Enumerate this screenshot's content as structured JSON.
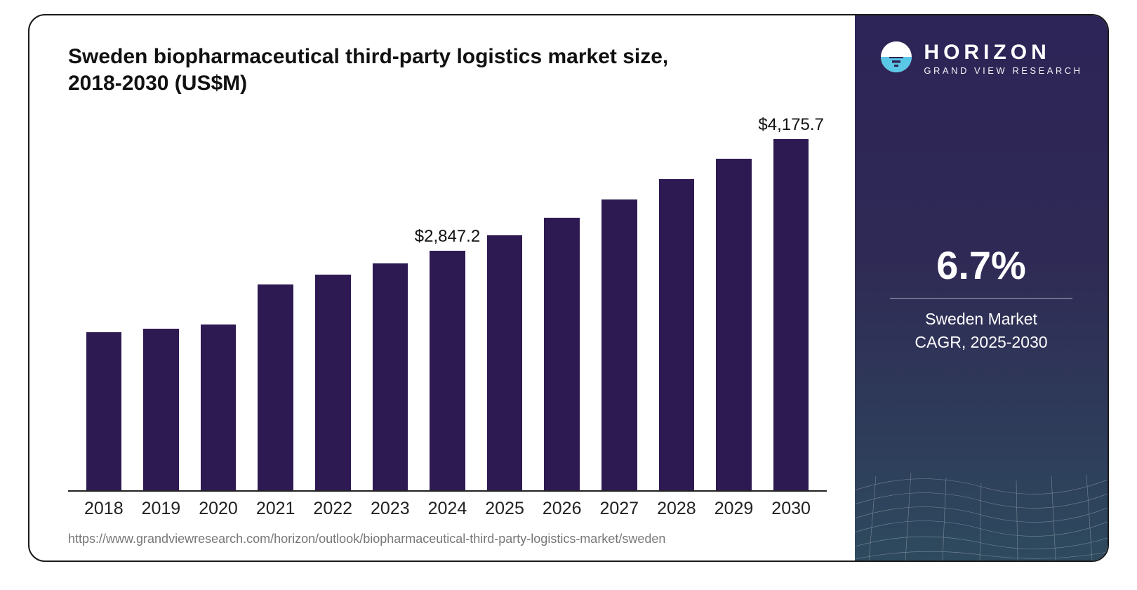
{
  "title": "Sweden biopharmaceutical third-party logistics market size, 2018-2030 (US$M)",
  "source_url": "https://www.grandviewresearch.com/horizon/outlook/biopharmaceutical-third-party-logistics-market/sweden",
  "chart": {
    "type": "bar",
    "categories": [
      "2018",
      "2019",
      "2020",
      "2021",
      "2022",
      "2023",
      "2024",
      "2025",
      "2026",
      "2027",
      "2028",
      "2029",
      "2030"
    ],
    "values": [
      1880,
      1920,
      1970,
      2450,
      2560,
      2700,
      2847.2,
      3030,
      3240,
      3460,
      3700,
      3940,
      4175.7
    ],
    "value_labels": [
      "",
      "",
      "",
      "",
      "",
      "",
      "$2,847.2",
      "",
      "",
      "",
      "",
      "",
      "$4,175.7"
    ],
    "y_max": 4600,
    "bar_color": "#2e1a52",
    "bar_width_pct": 62,
    "axis_color": "#222222",
    "background_color": "#ffffff",
    "title_fontsize": 30,
    "xtick_fontsize": 25,
    "value_label_fontsize": 24
  },
  "side": {
    "logo_name": "HORIZON",
    "logo_sub": "GRAND VIEW RESEARCH",
    "percent": "6.7%",
    "line1": "Sweden Market",
    "line2": "CAGR, 2025-2030",
    "gradient_top": "#2d2457",
    "gradient_bottom": "#2e4a5e",
    "logo_accent": "#5bc7e6"
  }
}
